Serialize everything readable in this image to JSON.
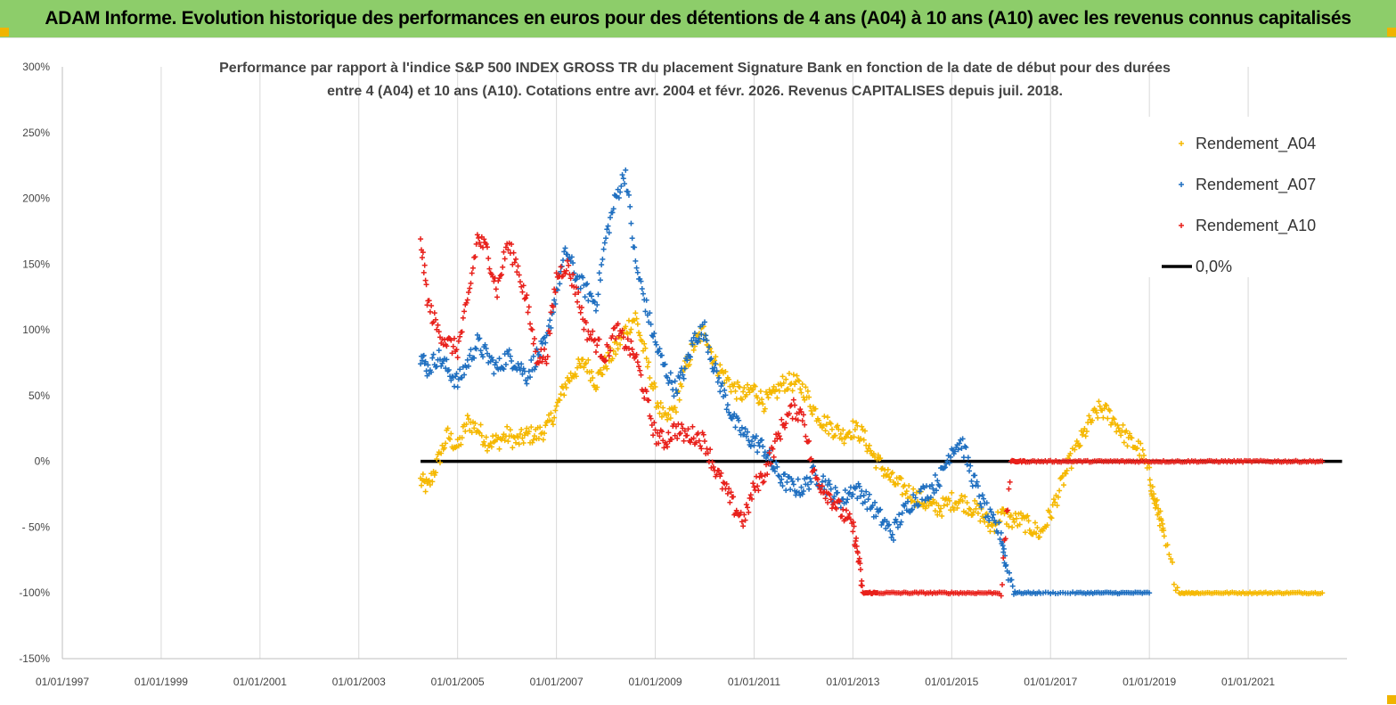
{
  "header": {
    "title": "ADAM Informe. Evolution historique des performances en euros pour des détentions de 4 ans (A04) à 10 ans (A10) avec les revenus connus capitalisés"
  },
  "chart_data": {
    "type": "scatter",
    "title_lines": [
      "Performance par rapport à l'indice S&P 500 INDEX GROSS TR  du placement Signature Bank en fonction de la date de début pour des durées",
      "entre 4 (A04) et 10 ans (A10).  Cotations entre avr. 2004 et févr. 2026. Revenus CAPITALISES depuis juil. 2018."
    ],
    "xlabel": "",
    "ylabel": "",
    "xlim": [
      1997.0,
      2023.0
    ],
    "ylim": [
      -150,
      300
    ],
    "x_ticks": [
      {
        "value": 1997,
        "label": "01/01/1997"
      },
      {
        "value": 1999,
        "label": "01/01/1999"
      },
      {
        "value": 2001,
        "label": "01/01/2001"
      },
      {
        "value": 2003,
        "label": "01/01/2003"
      },
      {
        "value": 2005,
        "label": "01/01/2005"
      },
      {
        "value": 2007,
        "label": "01/01/2007"
      },
      {
        "value": 2009,
        "label": "01/01/2009"
      },
      {
        "value": 2011,
        "label": "01/01/2011"
      },
      {
        "value": 2013,
        "label": "01/01/2013"
      },
      {
        "value": 2015,
        "label": "01/01/2015"
      },
      {
        "value": 2017,
        "label": "01/01/2017"
      },
      {
        "value": 2019,
        "label": "01/01/2019"
      },
      {
        "value": 2021,
        "label": "01/01/2021"
      }
    ],
    "y_ticks": [
      {
        "value": 300,
        "label": "300%"
      },
      {
        "value": 250,
        "label": "250%"
      },
      {
        "value": 200,
        "label": "200%"
      },
      {
        "value": 150,
        "label": "150%"
      },
      {
        "value": 100,
        "label": "100%"
      },
      {
        "value": 50,
        "label": "50%"
      },
      {
        "value": 0,
        "label": "0%"
      },
      {
        "value": -50,
        "label": "- 50%"
      },
      {
        "value": -100,
        "label": "-100%"
      },
      {
        "value": -150,
        "label": "-150%"
      }
    ],
    "grid": "vertical",
    "legend_position": "top-right",
    "series": [
      {
        "name": "Rendement_A04",
        "color": "#f5b800",
        "marker": "+",
        "x": [
          2004.25,
          2004.4,
          2004.6,
          2004.8,
          2005.0,
          2005.2,
          2005.4,
          2005.6,
          2005.8,
          2006.0,
          2006.2,
          2006.4,
          2006.6,
          2006.8,
          2007.0,
          2007.2,
          2007.4,
          2007.6,
          2007.8,
          2008.0,
          2008.2,
          2008.4,
          2008.6,
          2008.8,
          2009.0,
          2009.2,
          2009.4,
          2009.6,
          2009.8,
          2010.0,
          2010.2,
          2010.4,
          2010.6,
          2010.8,
          2011.0,
          2011.2,
          2011.4,
          2011.6,
          2011.8,
          2012.0,
          2012.2,
          2012.4,
          2012.6,
          2012.8,
          2013.0,
          2013.2,
          2013.4,
          2013.6,
          2013.8,
          2014.0,
          2014.2,
          2014.4,
          2014.6,
          2014.8,
          2015.0,
          2015.2,
          2015.4,
          2015.6,
          2015.8,
          2016.0,
          2016.2,
          2016.4,
          2016.6,
          2016.8,
          2017.0,
          2017.2,
          2017.4,
          2017.6,
          2017.8,
          2018.0,
          2018.2,
          2018.4,
          2018.6,
          2018.8,
          2019.0,
          2019.1,
          2019.2,
          2019.3,
          2019.6,
          2020.0,
          2020.5,
          2021.0,
          2021.5,
          2022.0,
          2022.5
        ],
        "y": [
          -15,
          -20,
          0,
          20,
          10,
          30,
          25,
          15,
          15,
          20,
          15,
          20,
          20,
          25,
          40,
          60,
          70,
          75,
          60,
          75,
          85,
          100,
          110,
          80,
          50,
          30,
          40,
          70,
          90,
          100,
          75,
          65,
          55,
          50,
          55,
          45,
          50,
          60,
          60,
          55,
          40,
          30,
          25,
          20,
          25,
          20,
          5,
          -5,
          -15,
          -20,
          -25,
          -30,
          -35,
          -35,
          -30,
          -30,
          -35,
          -40,
          -50,
          -40,
          -45,
          -45,
          -50,
          -55,
          -40,
          -20,
          0,
          15,
          30,
          40,
          35,
          25,
          15,
          10,
          -10,
          -30,
          -40,
          -60,
          -100,
          -100,
          -100,
          -100,
          -100,
          -100,
          -100
        ]
      },
      {
        "name": "Rendement_A07",
        "color": "#1f6fc0",
        "marker": "+",
        "x": [
          2004.25,
          2004.4,
          2004.6,
          2004.8,
          2005.0,
          2005.2,
          2005.4,
          2005.6,
          2005.8,
          2006.0,
          2006.2,
          2006.4,
          2006.6,
          2006.8,
          2007.0,
          2007.2,
          2007.4,
          2007.6,
          2007.8,
          2008.0,
          2008.2,
          2008.4,
          2008.6,
          2008.8,
          2009.0,
          2009.2,
          2009.4,
          2009.6,
          2009.8,
          2010.0,
          2010.2,
          2010.4,
          2010.6,
          2010.8,
          2011.0,
          2011.2,
          2011.4,
          2011.6,
          2011.8,
          2012.0,
          2012.2,
          2012.4,
          2012.6,
          2012.8,
          2013.0,
          2013.2,
          2013.4,
          2013.6,
          2013.8,
          2014.0,
          2014.2,
          2014.4,
          2014.6,
          2014.8,
          2015.0,
          2015.2,
          2015.4,
          2015.6,
          2015.8,
          2016.0,
          2016.1,
          2016.3,
          2016.8,
          2017.5,
          2018.0,
          2018.5,
          2019.0
        ],
        "y": [
          80,
          70,
          80,
          70,
          60,
          75,
          90,
          80,
          70,
          80,
          75,
          65,
          80,
          90,
          130,
          160,
          140,
          130,
          120,
          170,
          200,
          220,
          150,
          120,
          90,
          70,
          55,
          70,
          95,
          100,
          70,
          50,
          30,
          20,
          15,
          10,
          -5,
          -15,
          -20,
          -20,
          -10,
          -15,
          -25,
          -30,
          -20,
          -25,
          -35,
          -45,
          -55,
          -40,
          -30,
          -25,
          -20,
          -10,
          10,
          15,
          -10,
          -30,
          -45,
          -55,
          -80,
          -100,
          -100,
          -100,
          -100,
          -100,
          -100
        ]
      },
      {
        "name": "Rendement_A10",
        "color": "#e8201b",
        "marker": "+",
        "x": [
          2004.25,
          2004.4,
          2004.6,
          2004.8,
          2005.0,
          2005.2,
          2005.4,
          2005.6,
          2005.8,
          2006.0,
          2006.2,
          2006.4,
          2006.6,
          2006.8,
          2007.0,
          2007.2,
          2007.4,
          2007.6,
          2007.8,
          2008.0,
          2008.2,
          2008.4,
          2008.6,
          2008.8,
          2009.0,
          2009.2,
          2009.4,
          2009.6,
          2009.8,
          2010.0,
          2010.2,
          2010.4,
          2010.6,
          2010.8,
          2011.0,
          2011.2,
          2011.4,
          2011.6,
          2011.8,
          2012.0,
          2012.2,
          2012.4,
          2012.6,
          2012.8,
          2013.0,
          2013.1,
          2013.2,
          2013.5,
          2014.0,
          2014.5,
          2015.0,
          2015.5,
          2016.0,
          2016.2,
          2016.5,
          2017.0,
          2017.5,
          2018.0,
          2018.5,
          2019.0,
          2019.5,
          2020.0,
          2020.5,
          2021.0,
          2021.5,
          2022.0,
          2022.5
        ],
        "y": [
          170,
          120,
          100,
          90,
          85,
          120,
          170,
          160,
          130,
          165,
          150,
          120,
          80,
          80,
          140,
          150,
          130,
          100,
          90,
          80,
          100,
          90,
          80,
          50,
          20,
          15,
          25,
          20,
          20,
          15,
          -5,
          -20,
          -35,
          -45,
          -20,
          -10,
          10,
          30,
          40,
          35,
          -10,
          -20,
          -30,
          -40,
          -50,
          -70,
          -100,
          -100,
          -100,
          -100,
          -100,
          -100,
          -100,
          0,
          0,
          0,
          0,
          0,
          0,
          0,
          0,
          0,
          0,
          0,
          0,
          0,
          0
        ]
      },
      {
        "name": "0,0%",
        "color": "#000000",
        "marker": "line",
        "x": [
          2004.25,
          2022.9
        ],
        "y": [
          0,
          0
        ]
      }
    ]
  }
}
